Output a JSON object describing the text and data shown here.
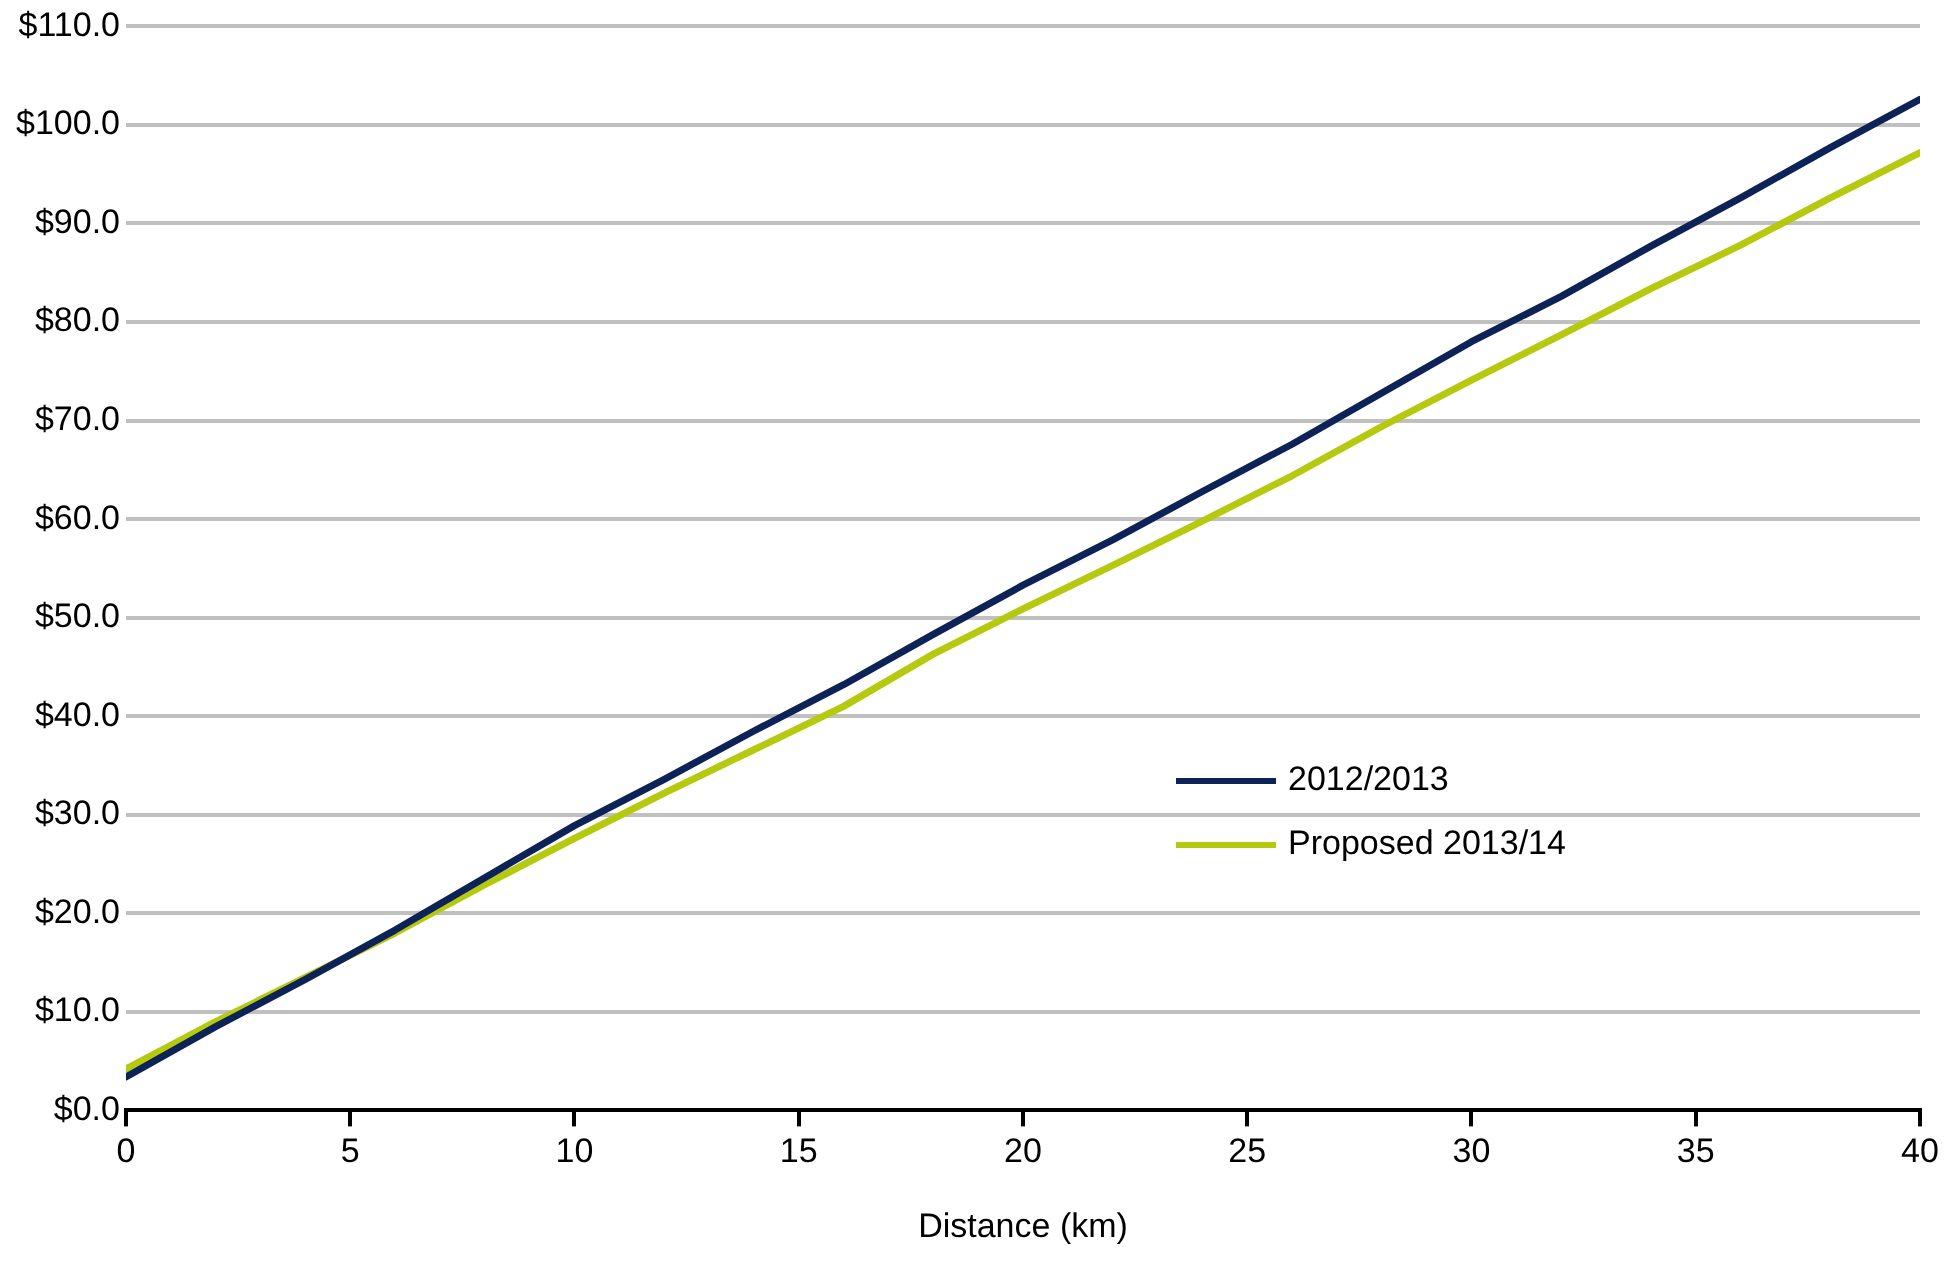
{
  "chart_data": {
    "type": "line",
    "xlabel": "Distance (km)",
    "x": [
      0,
      2,
      4,
      6,
      8,
      10,
      12,
      14,
      16,
      18,
      20,
      22,
      24,
      26,
      28,
      30,
      32,
      34,
      36,
      38,
      40
    ],
    "series": [
      {
        "name": "2012/2013",
        "color": "#0d2357",
        "values": [
          3.4,
          8.5,
          13.3,
          18.3,
          23.6,
          28.9,
          33.6,
          38.5,
          43.2,
          48.3,
          53.3,
          57.9,
          62.8,
          67.6,
          72.8,
          78.0,
          82.6,
          87.7,
          92.6,
          97.7,
          102.6
        ]
      },
      {
        "name": "Proposed 2013/14",
        "color": "#b5c90f",
        "values": [
          4.2,
          9.0,
          13.5,
          18.0,
          22.9,
          27.6,
          32.2,
          36.6,
          41.0,
          46.3,
          50.9,
          55.3,
          59.8,
          64.4,
          69.4,
          74.1,
          78.7,
          83.4,
          87.8,
          92.6,
          97.2
        ]
      }
    ],
    "xlim": [
      0,
      40
    ],
    "xticks": [
      0,
      5,
      10,
      15,
      20,
      25,
      30,
      35,
      40
    ],
    "ylim": [
      0,
      110
    ],
    "yticks": [
      {
        "value": 0,
        "label": "$0.0"
      },
      {
        "value": 10,
        "label": "$10.0"
      },
      {
        "value": 20,
        "label": "$20.0"
      },
      {
        "value": 30,
        "label": "$30.0"
      },
      {
        "value": 40,
        "label": "$40.0"
      },
      {
        "value": 50,
        "label": "$50.0"
      },
      {
        "value": 60,
        "label": "$60.0"
      },
      {
        "value": 70,
        "label": "$70.0"
      },
      {
        "value": 80,
        "label": "$80.0"
      },
      {
        "value": 90,
        "label": "$90.0"
      },
      {
        "value": 100,
        "label": "$100.0"
      },
      {
        "value": 110,
        "label": "$110.0"
      }
    ],
    "grid": "y",
    "legend": "bottom right",
    "marker": "none",
    "line_style": "solid"
  }
}
